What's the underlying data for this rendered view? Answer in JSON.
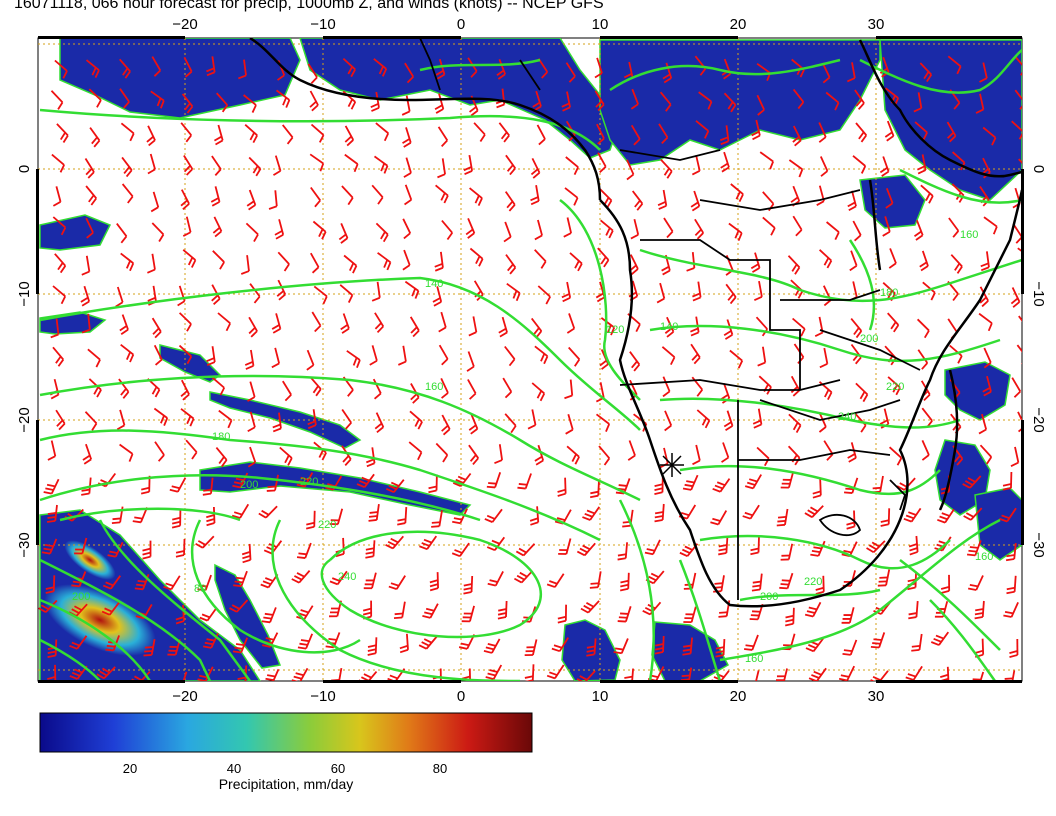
{
  "title": "16071118, 066 hour forecast for precip, 1000mb Z, and winds (knots) -- NCEP GFS",
  "axes": {
    "x_ticks": [
      "−20",
      "−10",
      "0",
      "10",
      "20",
      "30"
    ],
    "y_ticks": [
      "0",
      "−10",
      "−20",
      "−30"
    ]
  },
  "contour_labels": [
    "140",
    "160",
    "180",
    "200",
    "220",
    "240",
    "200",
    "220",
    "80",
    "120",
    "140",
    "160",
    "180",
    "200",
    "220",
    "240",
    "220",
    "200",
    "160",
    "160"
  ],
  "colorbar": {
    "label": "Precipitation, mm/day",
    "ticks": [
      "20",
      "40",
      "60",
      "80"
    ]
  },
  "colors": {
    "precip_low": "#1a2aa8",
    "contour": "#33dd33",
    "wind_barb": "#ee1111",
    "coastline": "#000000",
    "grid": "#d4a017"
  },
  "marker": "station-cross-icon"
}
